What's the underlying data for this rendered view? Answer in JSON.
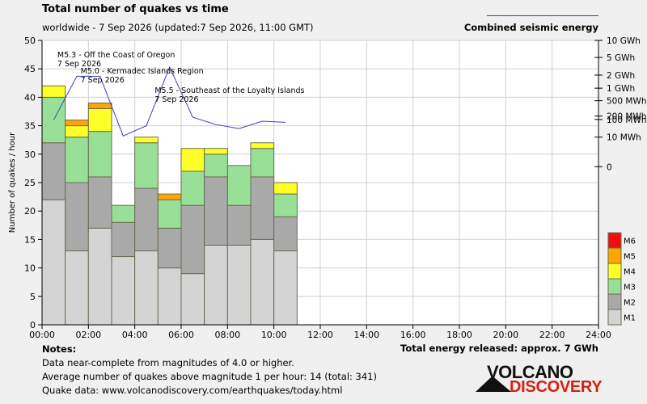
{
  "header": {
    "title": "Total number of quakes vs time",
    "subtitle": "worldwide - 7 Sep 2026 (updated:7 Sep 2026, 11:00 GMT)",
    "energy_legend": "Combined seismic energy"
  },
  "notes": {
    "heading": "Notes:",
    "lines": [
      "Data near-complete from magnitudes of 4.0 or higher.",
      "Average number of quakes above magnitude 1 per hour: 14 (total: 341)",
      "Quake data: www.volcanodiscovery.com/earthquakes/today.html"
    ],
    "energy_total": "Total energy released: approx. 7 GWh"
  },
  "logo": {
    "top": "VOLCANO",
    "bottom": "DISCOVERY"
  },
  "chart_data": {
    "type": "bar",
    "stacked": true,
    "ylabel": "Number of quakes / hour",
    "ylim": [
      0,
      50
    ],
    "yticks": [
      0,
      5,
      10,
      15,
      20,
      25,
      30,
      35,
      40,
      45,
      50
    ],
    "xlim": [
      0,
      24
    ],
    "xticks": [
      "00:00",
      "02:00",
      "04:00",
      "06:00",
      "08:00",
      "10:00",
      "12:00",
      "14:00",
      "16:00",
      "18:00",
      "20:00",
      "22:00",
      "24:00"
    ],
    "hours": [
      0,
      1,
      2,
      3,
      4,
      5,
      6,
      7,
      8,
      9,
      10
    ],
    "grid": true,
    "series": [
      {
        "name": "M1",
        "color": "#d4d4d4",
        "values": [
          22,
          13,
          17,
          12,
          13,
          10,
          9,
          14,
          14,
          15,
          13
        ]
      },
      {
        "name": "M2",
        "color": "#a9a9a9",
        "values": [
          10,
          12,
          9,
          6,
          11,
          7,
          12,
          12,
          7,
          11,
          6
        ]
      },
      {
        "name": "M3",
        "color": "#98e098",
        "values": [
          8,
          8,
          8,
          3,
          8,
          5,
          6,
          4,
          7,
          5,
          4
        ]
      },
      {
        "name": "M4",
        "color": "#ffff28",
        "values": [
          2,
          2,
          4,
          0,
          1,
          0,
          4,
          1,
          0,
          1,
          2
        ]
      },
      {
        "name": "M5",
        "color": "#ffa500",
        "values": [
          0,
          1,
          1,
          0,
          0,
          1,
          0,
          0,
          0,
          0,
          0
        ]
      },
      {
        "name": "M6",
        "color": "#ee1010",
        "values": [
          0,
          0,
          0,
          0,
          0,
          0,
          0,
          0,
          0,
          0,
          0
        ]
      }
    ],
    "energy_axis": {
      "labels": [
        "10 GWh",
        "5 GWh",
        "2 GWh",
        "1 GWh",
        "500 MWh",
        "200 MWh",
        "100 MWh",
        "10 MWh",
        "0"
      ],
      "label_at_count": [
        50,
        47,
        43.9,
        41.6,
        39.4,
        36.7,
        36.1,
        33,
        27.8
      ]
    },
    "energy_line": {
      "color": "#3f3fbf",
      "hours": [
        0.5,
        1.5,
        2.5,
        3.5,
        4.5,
        5.5,
        6.5,
        7.5,
        8.5,
        9.5,
        10.5
      ],
      "scaled_values": [
        36,
        43.7,
        43.7,
        33.2,
        35,
        45.3,
        36.5,
        35.2,
        34.5,
        35.8,
        35.6
      ]
    },
    "annotations": [
      {
        "lines": [
          "M5.3 - Off the Coast of Oregon",
          "7 Sep 2026"
        ],
        "hour": 0.8,
        "at_count": 47
      },
      {
        "lines": [
          "M5.0 - Kermadec Islands Region",
          "7 Sep 2026"
        ],
        "hour": 1.8,
        "at_count": 44.2
      },
      {
        "lines": [
          "M5.5 - Southeast of the Loyalty Islands",
          "7 Sep 2026"
        ],
        "hour": 5.0,
        "at_count": 40.8
      }
    ]
  }
}
